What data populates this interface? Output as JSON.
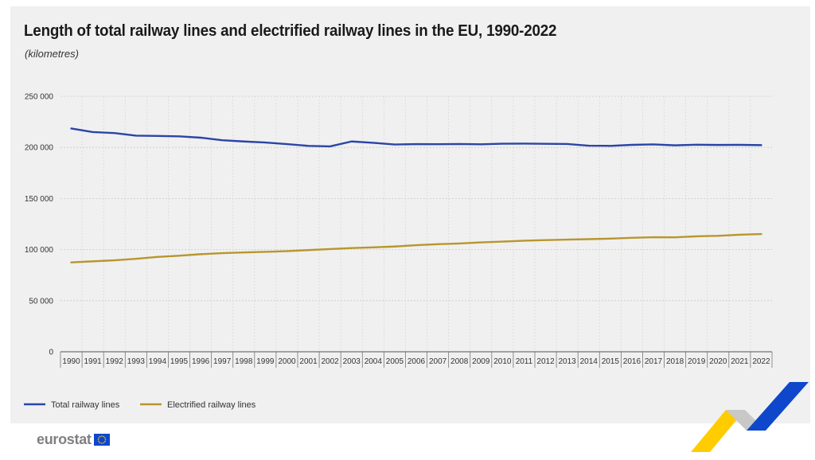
{
  "header": {
    "title": "Length of total railway lines and electrified railway lines in the EU, 1990-2022",
    "subtitle": "(kilometres)"
  },
  "brand": {
    "logo_text": "eurostat",
    "accent_blue": "#0e47cb",
    "accent_yellow": "#ffcc00"
  },
  "colors": {
    "total": "#2a45a5",
    "electrified": "#b8962e",
    "panel_bg": "#f0f0f0"
  },
  "chart_data": {
    "type": "line",
    "title": "Length of total railway lines and electrified railway lines in the EU, 1990-2022",
    "subtitle": "(kilometres)",
    "xlabel": "",
    "ylabel": "",
    "ylim": [
      0,
      250000
    ],
    "yticks": [
      0,
      50000,
      100000,
      150000,
      200000,
      250000
    ],
    "ytick_labels": [
      "0",
      "50 000",
      "100 000",
      "150 000",
      "200 000",
      "250 000"
    ],
    "grid": "horizontal dotted",
    "legend": "bottom-left",
    "categories": [
      "1990",
      "1991",
      "1992",
      "1993",
      "1994",
      "1995",
      "1996",
      "1997",
      "1998",
      "1999",
      "2000",
      "2001",
      "2002",
      "2003",
      "2004",
      "2005",
      "2006",
      "2007",
      "2008",
      "2009",
      "2010",
      "2011",
      "2012",
      "2013",
      "2014",
      "2015",
      "2016",
      "2017",
      "2018",
      "2019",
      "2020",
      "2021",
      "2022"
    ],
    "series": [
      {
        "name": "Total railway lines",
        "color": "#2a45a5",
        "values": [
          218500,
          215000,
          214000,
          211500,
          211200,
          210800,
          209500,
          207000,
          205800,
          204800,
          203200,
          201500,
          201000,
          205800,
          204500,
          202800,
          203200,
          203100,
          203300,
          203000,
          203600,
          203700,
          203500,
          203300,
          201700,
          201500,
          202500,
          202900,
          202000,
          202600,
          202400,
          202500,
          202200
        ]
      },
      {
        "name": "Electrified railway lines",
        "color": "#b8962e",
        "values": [
          87500,
          88500,
          89500,
          91000,
          92800,
          94000,
          95500,
          96500,
          97200,
          97800,
          98500,
          99500,
          100500,
          101500,
          102200,
          103000,
          104300,
          105300,
          106000,
          107000,
          107800,
          108700,
          109300,
          109800,
          110200,
          110700,
          111500,
          112100,
          112000,
          113000,
          113500,
          114500,
          115200
        ]
      }
    ]
  }
}
